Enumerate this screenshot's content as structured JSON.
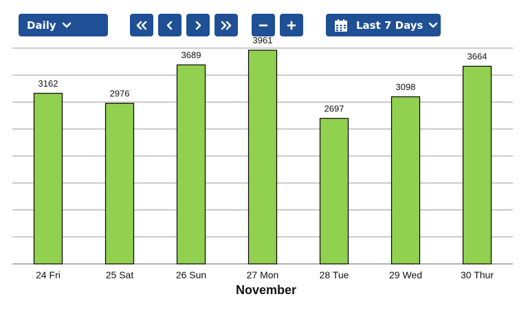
{
  "toolbar": {
    "period_label": "Daily",
    "range_label": "Last 7 Days",
    "icons": [
      "chevron-down-icon",
      "double-chevron-left-icon",
      "chevron-left-icon",
      "chevron-right-icon",
      "double-chevron-right-icon",
      "minus-icon",
      "plus-icon",
      "calendar-icon"
    ]
  },
  "colors": {
    "button": "#1f4f94",
    "bar": "#92d050",
    "bar_outline": "#000000",
    "grid": "#9a9a9a"
  },
  "chart_data": {
    "type": "bar",
    "categories": [
      "24 Fri",
      "25 Sat",
      "26 Sun",
      "27 Mon",
      "28 Tue",
      "29 Wed",
      "30 Thur"
    ],
    "values": [
      3162,
      2976,
      3689,
      3961,
      2697,
      3098,
      3664
    ],
    "xlabel": "November",
    "ylim": [
      0,
      4000
    ],
    "grid": true,
    "legend": "none"
  }
}
